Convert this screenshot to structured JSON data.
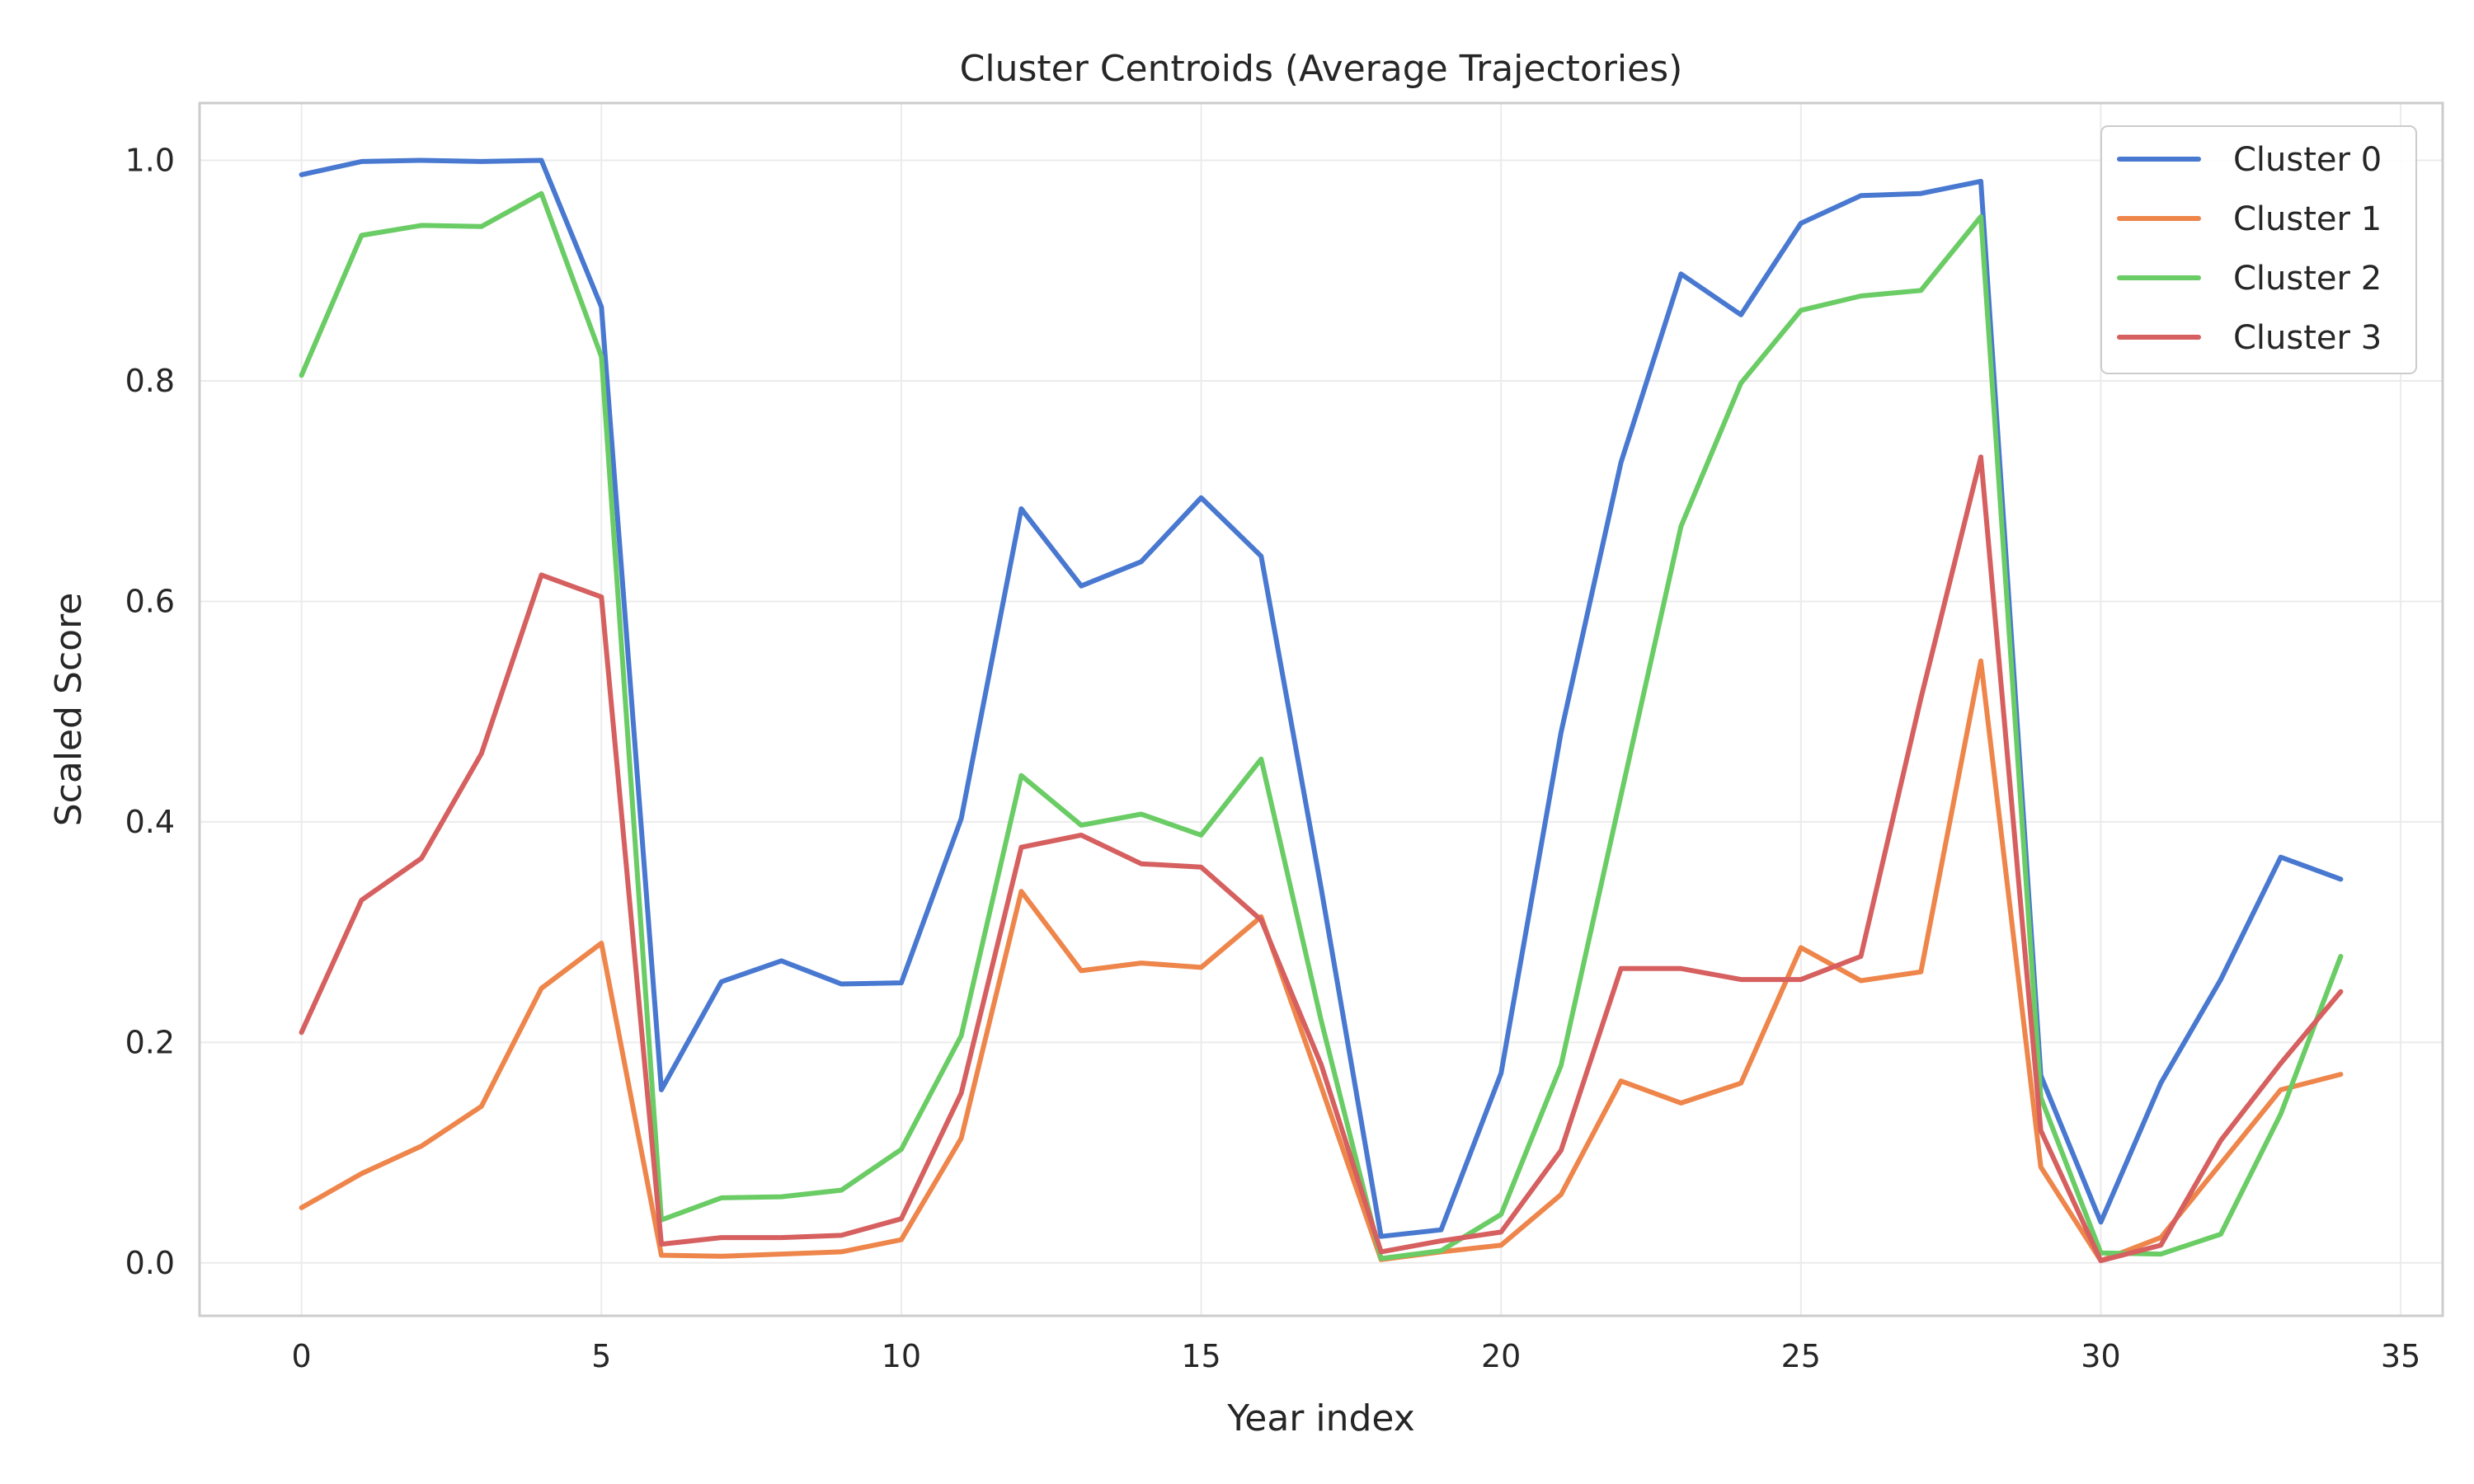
{
  "colors": {
    "background": "#ffffff",
    "grid": "#ebebeb",
    "frame": "#cccccc",
    "text": "#262626"
  },
  "chart_data": {
    "type": "line",
    "title": "Cluster Centroids (Average Trajectories)",
    "xlabel": "Year index",
    "ylabel": "Scaled Score",
    "xlim": [
      -1.7,
      35.7
    ],
    "ylim": [
      -0.048,
      1.052
    ],
    "xticks": [
      0,
      5,
      10,
      15,
      20,
      25,
      30,
      35
    ],
    "xtick_labels": [
      "0",
      "5",
      "10",
      "15",
      "20",
      "25",
      "30",
      "35"
    ],
    "yticks": [
      0.0,
      0.2,
      0.4,
      0.6,
      0.8,
      1.0
    ],
    "ytick_labels": [
      "0.0",
      "0.2",
      "0.4",
      "0.6",
      "0.8",
      "1.0"
    ],
    "grid": true,
    "legend_position": "top-right",
    "x": [
      0,
      1,
      2,
      3,
      4,
      5,
      6,
      7,
      8,
      9,
      10,
      11,
      12,
      13,
      14,
      15,
      16,
      17,
      18,
      19,
      20,
      21,
      22,
      23,
      24,
      25,
      26,
      27,
      28,
      29,
      30,
      31,
      32,
      33,
      34
    ],
    "series": [
      {
        "name": "Cluster 0",
        "color": "#4878d0",
        "values": [
          0.987,
          0.999,
          1.0,
          0.999,
          1.0,
          0.867,
          0.157,
          0.255,
          0.274,
          0.253,
          0.254,
          0.403,
          0.684,
          0.614,
          0.636,
          0.694,
          0.641,
          0.34,
          0.024,
          0.03,
          0.172,
          0.481,
          0.726,
          0.897,
          0.86,
          0.943,
          0.968,
          0.97,
          0.981,
          0.17,
          0.037,
          0.163,
          0.257,
          0.368,
          0.348
        ]
      },
      {
        "name": "Cluster 1",
        "color": "#ee854a",
        "values": [
          0.05,
          0.081,
          0.106,
          0.142,
          0.249,
          0.29,
          0.007,
          0.006,
          0.008,
          0.01,
          0.021,
          0.113,
          0.337,
          0.265,
          0.272,
          0.268,
          0.314,
          0.16,
          0.003,
          0.01,
          0.016,
          0.062,
          0.165,
          0.145,
          0.163,
          0.286,
          0.256,
          0.264,
          0.546,
          0.087,
          0.002,
          0.023,
          0.09,
          0.157,
          0.171
        ]
      },
      {
        "name": "Cluster 2",
        "color": "#6acc64",
        "values": [
          0.805,
          0.932,
          0.941,
          0.94,
          0.97,
          0.822,
          0.039,
          0.059,
          0.06,
          0.066,
          0.103,
          0.206,
          0.442,
          0.397,
          0.407,
          0.388,
          0.457,
          0.22,
          0.004,
          0.011,
          0.044,
          0.179,
          0.424,
          0.668,
          0.798,
          0.864,
          0.877,
          0.882,
          0.949,
          0.15,
          0.009,
          0.008,
          0.026,
          0.135,
          0.278
        ]
      },
      {
        "name": "Cluster 3",
        "color": "#d65f5f",
        "values": [
          0.209,
          0.329,
          0.367,
          0.462,
          0.624,
          0.604,
          0.017,
          0.023,
          0.023,
          0.025,
          0.04,
          0.154,
          0.377,
          0.388,
          0.362,
          0.359,
          0.311,
          0.18,
          0.01,
          0.02,
          0.028,
          0.102,
          0.267,
          0.267,
          0.257,
          0.257,
          0.278,
          0.512,
          0.731,
          0.12,
          0.002,
          0.016,
          0.111,
          0.181,
          0.246
        ]
      }
    ]
  }
}
